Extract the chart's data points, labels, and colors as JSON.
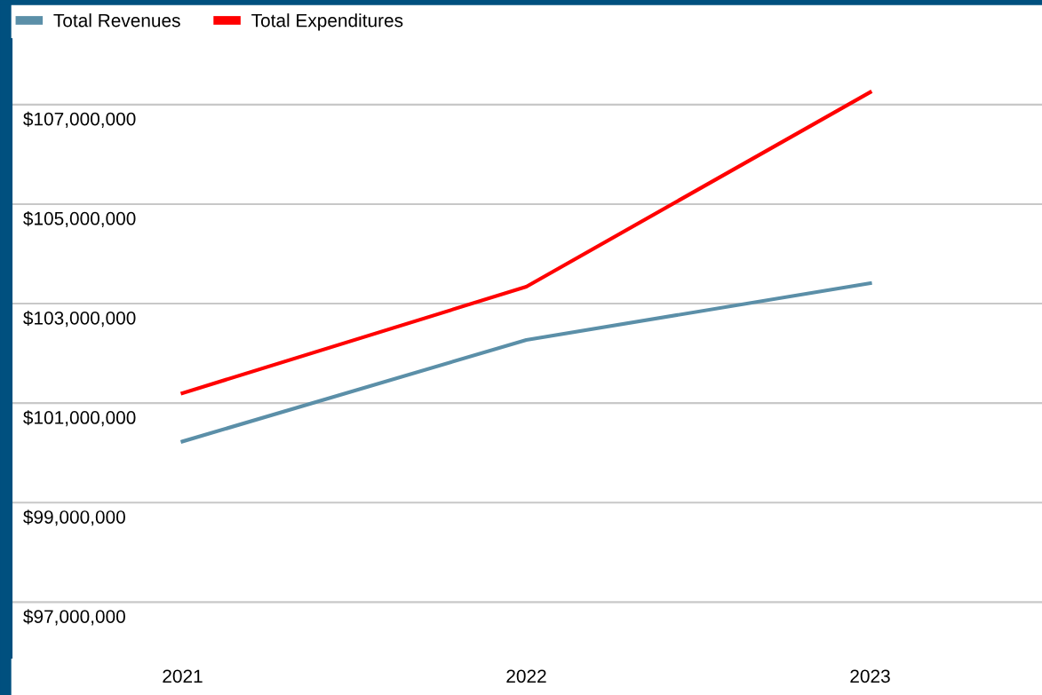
{
  "chart_data": {
    "type": "line",
    "categories": [
      "2021",
      "2022",
      "2023"
    ],
    "series": [
      {
        "name": "Total Revenues",
        "color": "#5b8fa8",
        "values": [
          100230000,
          102270000,
          103410000
        ]
      },
      {
        "name": "Total Expenditures",
        "color": "#ff0000",
        "values": [
          101200000,
          103340000,
          107250000
        ]
      }
    ],
    "ylim": [
      95900000,
      108300000
    ],
    "yticks": [
      {
        "value": 97000000,
        "label": "$97,000,000"
      },
      {
        "value": 99000000,
        "label": "$99,000,000"
      },
      {
        "value": 101000000,
        "label": "$101,000,000"
      },
      {
        "value": 103000000,
        "label": "$103,000,000"
      },
      {
        "value": 105000000,
        "label": "$105,000,000"
      },
      {
        "value": 107000000,
        "label": "$107,000,000"
      }
    ],
    "grid": "y",
    "legend": "top left",
    "marker": "none",
    "line_style": "solid"
  }
}
